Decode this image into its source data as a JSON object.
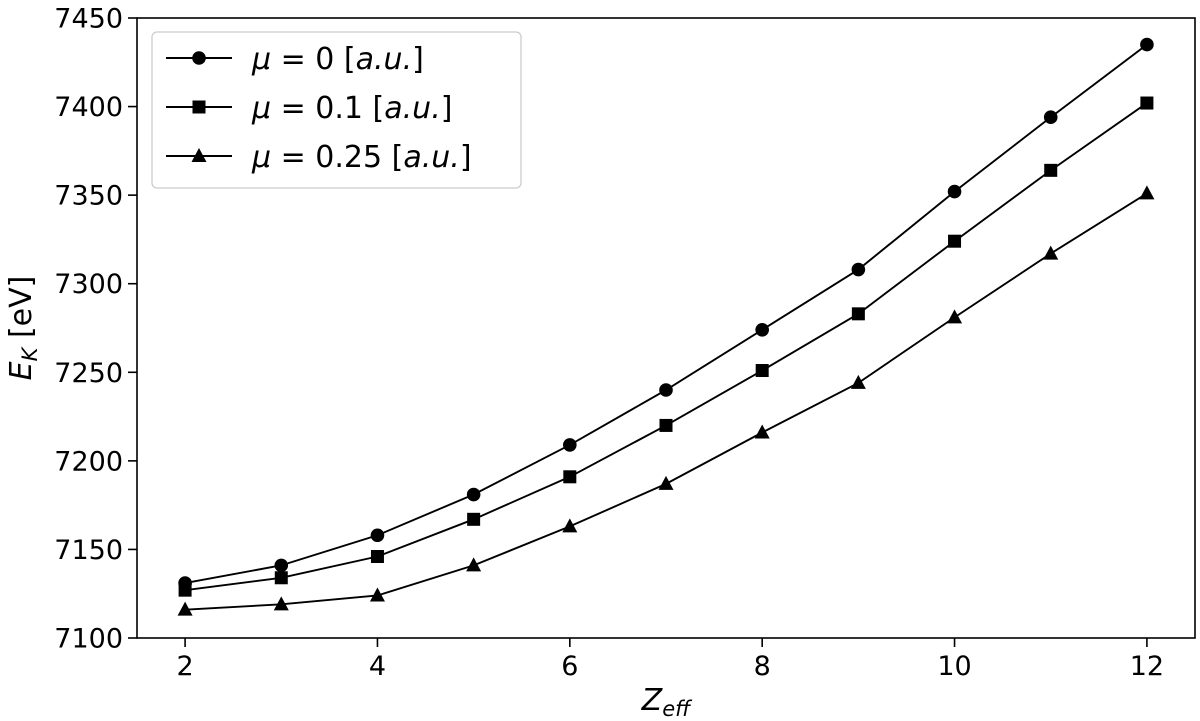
{
  "chart_data": {
    "type": "line",
    "xlabel": {
      "main": "Z",
      "sub": "eff"
    },
    "ylabel": {
      "main": "E",
      "sub": "K",
      "rest": " [eV]"
    },
    "xlim": [
      1.5,
      12.5
    ],
    "ylim": [
      7100,
      7450
    ],
    "x_ticks": [
      2,
      4,
      6,
      8,
      10,
      12
    ],
    "y_ticks": [
      7100,
      7150,
      7200,
      7250,
      7300,
      7350,
      7400,
      7450
    ],
    "x": [
      2,
      3,
      4,
      5,
      6,
      7,
      8,
      9,
      10,
      11,
      12
    ],
    "series": [
      {
        "name": "μ = 0 [a.u.]",
        "legend": {
          "mu": "μ",
          "eq": " = 0 [",
          "unit": "a.u.",
          "close": "]"
        },
        "marker": "circle",
        "values": [
          7131,
          7141,
          7158,
          7181,
          7209,
          7240,
          7274,
          7308,
          7352,
          7394,
          7435
        ]
      },
      {
        "name": "μ = 0.1 [a.u.]",
        "legend": {
          "mu": "μ",
          "eq": " = 0.1 [",
          "unit": "a.u.",
          "close": "]"
        },
        "marker": "square",
        "values": [
          7127,
          7134,
          7146,
          7167,
          7191,
          7220,
          7251,
          7283,
          7324,
          7364,
          7402
        ]
      },
      {
        "name": "μ = 0.25 [a.u.]",
        "legend": {
          "mu": "μ",
          "eq": " = 0.25 [",
          "unit": "a.u.",
          "close": "]"
        },
        "marker": "triangle",
        "values": [
          7116,
          7119,
          7124,
          7141,
          7163,
          7187,
          7216,
          7244,
          7281,
          7317,
          7351
        ]
      }
    ],
    "legend_position": "top-left",
    "grid": false,
    "line_color": "#000000"
  }
}
